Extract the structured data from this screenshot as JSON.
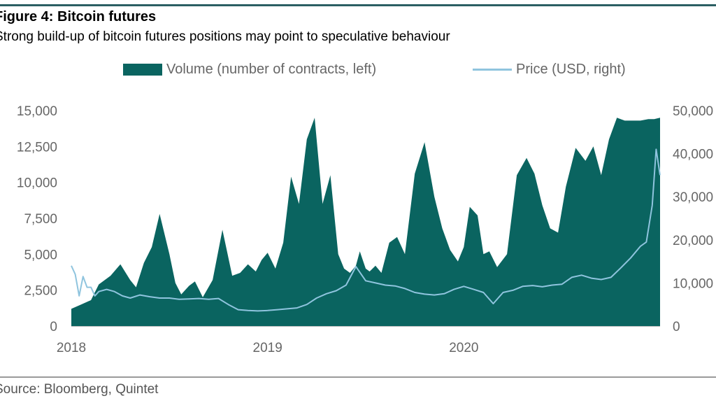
{
  "figure": {
    "title": "Figure 4: Bitcoin futures",
    "subtitle": "Strong build-up of bitcoin futures positions may point to speculative behaviour",
    "source": "Source: Bloomberg, Quintet"
  },
  "colors": {
    "volume": "#0a6460",
    "price": "#8fc4de",
    "rule": "#2b5f63"
  },
  "chart_data": {
    "type": "area",
    "legend_position": "top",
    "grid": false,
    "x_ticks": [
      "2018",
      "2019",
      "2020"
    ],
    "x_range": [
      2018.0,
      2021.0
    ],
    "y_left_ticks": [
      "0",
      "2,500",
      "5,000",
      "7,500",
      "10,000",
      "12,500",
      "15,000"
    ],
    "y_left_range": [
      0,
      15000
    ],
    "y_right_ticks": [
      "0",
      "10,000",
      "20,000",
      "30,000",
      "40,000",
      "50,000"
    ],
    "y_right_range": [
      0,
      50000
    ],
    "series": [
      {
        "name": "Volume (number of contracts, left)",
        "type": "area",
        "axis": "left",
        "x": [
          2018.0,
          2018.05,
          2018.1,
          2018.14,
          2018.2,
          2018.25,
          2018.3,
          2018.33,
          2018.37,
          2018.41,
          2018.45,
          2018.5,
          2018.53,
          2018.56,
          2018.6,
          2018.63,
          2018.67,
          2018.72,
          2018.77,
          2018.82,
          2018.86,
          2018.9,
          2018.94,
          2018.97,
          2019.0,
          2019.04,
          2019.08,
          2019.12,
          2019.16,
          2019.2,
          2019.24,
          2019.28,
          2019.32,
          2019.36,
          2019.39,
          2019.42,
          2019.45,
          2019.47,
          2019.5,
          2019.52,
          2019.55,
          2019.58,
          2019.62,
          2019.66,
          2019.7,
          2019.75,
          2019.8,
          2019.85,
          2019.89,
          2019.93,
          2019.97,
          2020.0,
          2020.03,
          2020.07,
          2020.1,
          2020.13,
          2020.17,
          2020.22,
          2020.27,
          2020.32,
          2020.36,
          2020.4,
          2020.44,
          2020.48,
          2020.52,
          2020.57,
          2020.62,
          2020.66,
          2020.7,
          2020.74,
          2020.78,
          2020.82,
          2020.86,
          2020.9,
          2020.94,
          2020.97,
          2021.0
        ],
        "values": [
          1200,
          1500,
          1800,
          2900,
          3500,
          4300,
          3200,
          2700,
          4400,
          5500,
          7800,
          5000,
          3000,
          2200,
          2800,
          3100,
          2000,
          3200,
          6700,
          3500,
          3700,
          4300,
          3800,
          4600,
          5100,
          4000,
          5800,
          10400,
          8500,
          13000,
          14500,
          8500,
          10500,
          5000,
          4000,
          3700,
          4200,
          5200,
          4000,
          3800,
          4200,
          3700,
          5800,
          6200,
          5000,
          10600,
          12800,
          9000,
          6800,
          5300,
          4500,
          5500,
          8300,
          7700,
          5000,
          5200,
          4100,
          5000,
          10500,
          11700,
          10600,
          8400,
          6800,
          6500,
          9700,
          12400,
          11500,
          12500,
          10500,
          13000,
          14500,
          14300,
          14300,
          14300,
          14400,
          14400,
          14500
        ]
      },
      {
        "name": "Price (USD, right)",
        "type": "line",
        "axis": "right",
        "x": [
          2018.0,
          2018.02,
          2018.04,
          2018.06,
          2018.08,
          2018.1,
          2018.12,
          2018.14,
          2018.18,
          2018.22,
          2018.26,
          2018.3,
          2018.35,
          2018.4,
          2018.45,
          2018.5,
          2018.55,
          2018.6,
          2018.65,
          2018.7,
          2018.75,
          2018.8,
          2018.85,
          2018.9,
          2018.95,
          2019.0,
          2019.05,
          2019.1,
          2019.15,
          2019.2,
          2019.25,
          2019.3,
          2019.35,
          2019.4,
          2019.45,
          2019.5,
          2019.55,
          2019.6,
          2019.65,
          2019.7,
          2019.75,
          2019.8,
          2019.85,
          2019.9,
          2019.95,
          2020.0,
          2020.05,
          2020.1,
          2020.15,
          2020.2,
          2020.25,
          2020.3,
          2020.35,
          2020.4,
          2020.45,
          2020.5,
          2020.55,
          2020.6,
          2020.65,
          2020.7,
          2020.75,
          2020.8,
          2020.85,
          2020.9,
          2020.93,
          2020.96,
          2020.98,
          2021.0
        ],
        "values": [
          14000,
          12000,
          7000,
          11500,
          9000,
          9000,
          7000,
          8000,
          8500,
          8000,
          7000,
          6500,
          7200,
          6800,
          6500,
          6500,
          6200,
          6300,
          6400,
          6200,
          6400,
          5000,
          3800,
          3600,
          3500,
          3600,
          3800,
          4000,
          4200,
          5000,
          6500,
          7500,
          8200,
          9500,
          13800,
          10500,
          10000,
          9500,
          9300,
          8700,
          7800,
          7400,
          7200,
          7500,
          8500,
          9200,
          8500,
          7800,
          5200,
          7800,
          8300,
          9200,
          9400,
          9100,
          9500,
          9700,
          11300,
          11800,
          11100,
          10800,
          11300,
          13500,
          15800,
          18500,
          19500,
          28000,
          41000,
          35000
        ]
      }
    ]
  }
}
